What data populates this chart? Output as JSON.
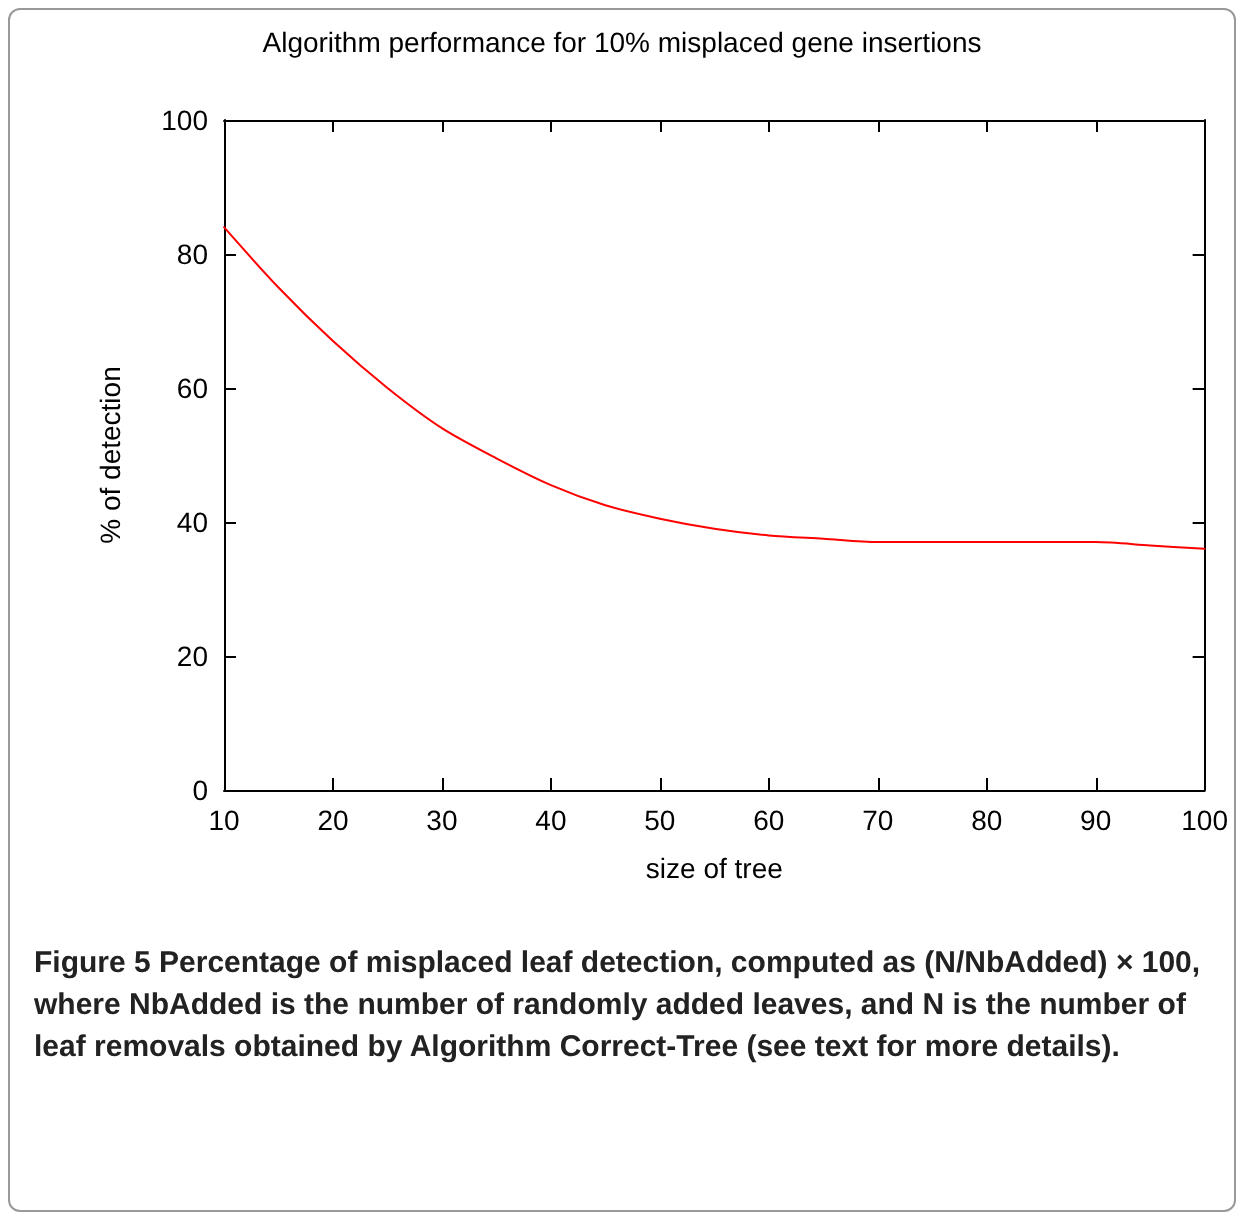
{
  "chart_data": {
    "type": "line",
    "title": "Algorithm performance for 10% misplaced gene insertions",
    "xlabel": "size of tree",
    "ylabel": "% of detection",
    "x": [
      10,
      15,
      20,
      25,
      30,
      35,
      40,
      45,
      50,
      55,
      60,
      65,
      70,
      75,
      80,
      85,
      90,
      95,
      100
    ],
    "series": [
      {
        "color": "#ff0000",
        "values": [
          84,
          75,
          67,
          60,
          54,
          49.5,
          45.5,
          42.5,
          40.5,
          39,
          38,
          37.5,
          37,
          37,
          37,
          37,
          37,
          36.5,
          36
        ]
      }
    ],
    "xlim": [
      10,
      100
    ],
    "xticks": [
      10,
      20,
      30,
      40,
      50,
      60,
      70,
      80,
      90,
      100
    ],
    "ylim": [
      0,
      100
    ],
    "yticks": [
      0,
      20,
      40,
      60,
      80,
      100
    ],
    "marker": "none",
    "line_style": "solid",
    "annotations": [
      "Figure 5 Percentage of misplaced leaf detection, computed as (N/NbAdded) × 100, where NbAdded is the number of randomly added leaves, and N is the number of leaf removals obtained by Algorithm Correct-Tree (see text for more details)."
    ]
  }
}
